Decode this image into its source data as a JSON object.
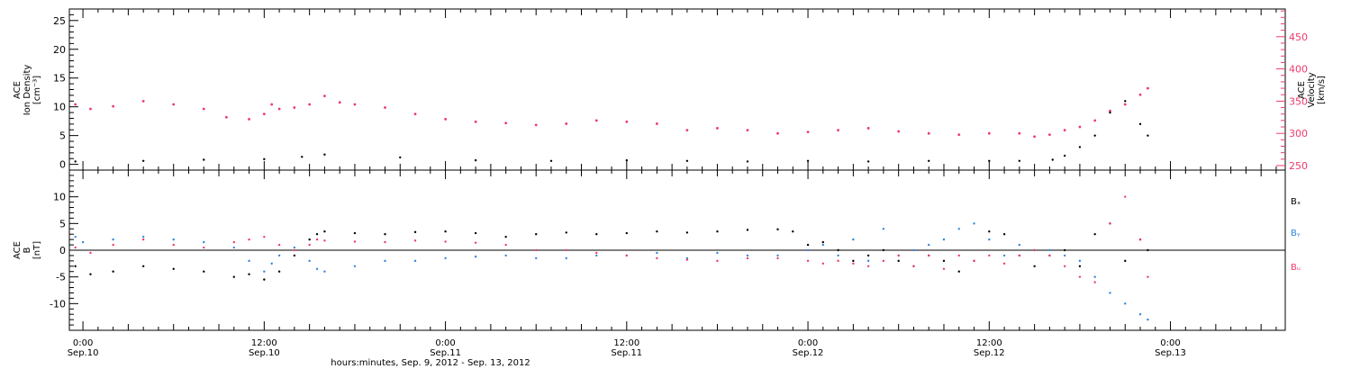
{
  "colors": {
    "density": "#000000",
    "velocity": "#ee3a6a",
    "bx": "#000000",
    "by": "#2f86db",
    "bz": "#ee3a6a"
  },
  "x_axis": {
    "ticks": [
      {
        "time": "0:00",
        "date": "Sep.10",
        "hour": 24
      },
      {
        "time": "12:00",
        "date": "Sep.10",
        "hour": 36
      },
      {
        "time": "0:00",
        "date": "Sep.11",
        "hour": 48
      },
      {
        "time": "12:00",
        "date": "Sep.11",
        "hour": 60
      },
      {
        "time": "0:00",
        "date": "Sep.12",
        "hour": 72
      },
      {
        "time": "12:00",
        "date": "Sep.12",
        "hour": 84
      },
      {
        "time": "0:00",
        "date": "Sep.13",
        "hour": 96
      }
    ],
    "title": "hours:minutes, Sep.  9, 2012 - Sep. 13, 2012"
  },
  "chart_data": [
    {
      "type": "scatter",
      "panel": "top",
      "xlim": [
        23.1,
        103.6
      ],
      "left_axis": {
        "label": [
          "ACE",
          "Ion Density",
          "[cm⁻³]"
        ],
        "ylim": [
          -1,
          27
        ],
        "ticks": [
          0,
          5,
          10,
          15,
          20,
          25
        ]
      },
      "right_axis": {
        "label": [
          "ACE",
          "Velocity",
          "[km/s]"
        ],
        "ylim": [
          243,
          493
        ],
        "ticks": [
          250,
          300,
          350,
          400,
          450
        ]
      },
      "series": [
        {
          "key": "density",
          "axis": "left",
          "x": [
            23.5,
            28,
            32,
            36,
            38.5,
            40,
            45,
            50,
            55,
            60,
            64,
            68,
            72,
            76,
            80,
            84,
            86,
            88.2,
            89,
            90,
            91,
            92,
            93,
            94,
            94.5
          ],
          "y": [
            0.5,
            0.6,
            0.8,
            0.9,
            1.3,
            1.7,
            1.2,
            0.7,
            0.6,
            0.7,
            0.6,
            0.5,
            0.6,
            0.5,
            0.6,
            0.6,
            0.6,
            0.8,
            1.5,
            3,
            5,
            9,
            11,
            7,
            5
          ]
        },
        {
          "key": "velocity",
          "axis": "right",
          "x": [
            23.5,
            24.5,
            26,
            28,
            30,
            32,
            33.5,
            35,
            36,
            36.5,
            37,
            38,
            39,
            40,
            41,
            42,
            44,
            46,
            48,
            50,
            52,
            54,
            56,
            58,
            60,
            62,
            64,
            66,
            68,
            70,
            72,
            74,
            76,
            78,
            80,
            82,
            84,
            86,
            87,
            88,
            89,
            90,
            91,
            92,
            93,
            94,
            94.5
          ],
          "y": [
            345,
            338,
            342,
            350,
            345,
            338,
            325,
            322,
            330,
            345,
            338,
            340,
            345,
            358,
            348,
            345,
            340,
            330,
            322,
            318,
            316,
            313,
            315,
            320,
            318,
            315,
            305,
            308,
            305,
            300,
            302,
            305,
            308,
            303,
            300,
            298,
            300,
            300,
            295,
            298,
            305,
            310,
            320,
            335,
            345,
            360,
            370
          ]
        }
      ]
    },
    {
      "type": "scatter",
      "panel": "bottom",
      "xlim": [
        23.1,
        103.6
      ],
      "ylabel": [
        "ACE",
        "B",
        "[nT]"
      ],
      "ylim": [
        -15,
        15
      ],
      "ticks": [
        -10,
        -5,
        0,
        5,
        10
      ],
      "legend": [
        "Bₓ",
        "Bᵧ",
        "Bᵤ"
      ],
      "legend_position": "right",
      "series": [
        {
          "key": "bx",
          "x": [
            23.5,
            24.5,
            26,
            28,
            30,
            32,
            34,
            35,
            36,
            37,
            38,
            39,
            39.5,
            40,
            42,
            44,
            46,
            48,
            50,
            52,
            54,
            56,
            58,
            60,
            62,
            64,
            66,
            68,
            70,
            71,
            72,
            73,
            74,
            75,
            76,
            77,
            78,
            79,
            80,
            81,
            82,
            83,
            84,
            85,
            86,
            87,
            88,
            89,
            90,
            91,
            92,
            93,
            94,
            94.5
          ],
          "y": [
            -3,
            -4.5,
            -4,
            -3,
            -3.5,
            -4,
            -5,
            -4.5,
            -5.5,
            -4,
            -1,
            2,
            3,
            3.5,
            3.2,
            3,
            3.4,
            3.5,
            3.2,
            2.5,
            3,
            3.3,
            3,
            3.2,
            3.5,
            3.3,
            3.5,
            3.8,
            3.9,
            3.5,
            1,
            1.5,
            0,
            -2,
            -1,
            0,
            -2,
            -3,
            -1,
            -2,
            -4,
            -2,
            3.5,
            3,
            -1,
            -3,
            -1,
            0,
            -3,
            3,
            5,
            -2,
            2,
            0
          ]
        },
        {
          "key": "by",
          "x": [
            23.5,
            24,
            26,
            28,
            30,
            32,
            34,
            35,
            36,
            36.5,
            37,
            38,
            39,
            39.5,
            40,
            42,
            44,
            46,
            48,
            50,
            52,
            54,
            56,
            58,
            60,
            62,
            64,
            66,
            68,
            70,
            72,
            73,
            74,
            75,
            76,
            77,
            78,
            79,
            80,
            81,
            82,
            83,
            84,
            85,
            86,
            87,
            88,
            89,
            90,
            91,
            92,
            93,
            94,
            94.5
          ],
          "y": [
            2.5,
            1.5,
            2,
            2.5,
            2,
            1.5,
            0.5,
            -2,
            -4,
            -2.5,
            -1,
            0.5,
            -2,
            -3.5,
            -4,
            -3,
            -2,
            -2,
            -1.5,
            -1.2,
            -1,
            -1.5,
            -1.5,
            -1,
            -1,
            -0.5,
            -1.5,
            -0.5,
            -1,
            -1,
            0,
            1,
            -1,
            2,
            -2,
            4,
            -1,
            0,
            1,
            2,
            4,
            5,
            2,
            -1,
            1,
            0,
            0,
            -1,
            -2,
            -5,
            -8,
            -10,
            -12,
            -13
          ]
        },
        {
          "key": "bz",
          "x": [
            23.5,
            24.5,
            26,
            28,
            30,
            32,
            34,
            35,
            36,
            37,
            38,
            39,
            39.5,
            40,
            42,
            44,
            46,
            48,
            50,
            52,
            54,
            56,
            58,
            60,
            62,
            64,
            66,
            68,
            70,
            72,
            73,
            74,
            75,
            76,
            77,
            78,
            79,
            80,
            81,
            82,
            83,
            84,
            85,
            86,
            87,
            88,
            89,
            90,
            91,
            92,
            93,
            94,
            94.5
          ],
          "y": [
            0.5,
            -0.5,
            1,
            2,
            1,
            0.5,
            1.5,
            2,
            2.5,
            1,
            0,
            1,
            2,
            1.8,
            1.6,
            1.5,
            1.8,
            1.6,
            1.4,
            1,
            0,
            0,
            -0.5,
            -1,
            -1.5,
            -1.8,
            -2,
            -1.5,
            -1.5,
            -2,
            -2.5,
            -2,
            -2.5,
            -3,
            -2,
            -1,
            -3,
            -1,
            -3.5,
            -1,
            -2,
            -1,
            -2.5,
            -1,
            0,
            -1,
            -3,
            -5,
            -6,
            5,
            10,
            2,
            -5
          ]
        }
      ]
    }
  ]
}
